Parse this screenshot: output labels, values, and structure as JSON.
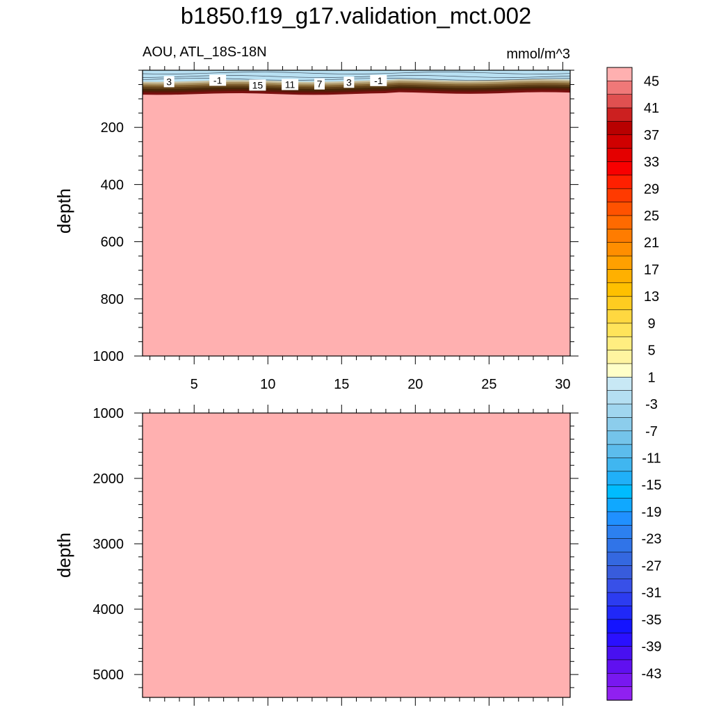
{
  "title": "b1850.f19_g17.validation_mct.002",
  "left_subtitle": "AOU, ATL_18S-18N",
  "right_subtitle": "mmol/m^3",
  "chart_data": {
    "type": "heatmap",
    "x_range": [
      1.5,
      30.5
    ],
    "x_ticks": [
      5,
      10,
      15,
      20,
      25,
      30
    ],
    "fill_value": 47,
    "fill_color": "#ffb0b0",
    "surface_layer": {
      "depth_range": [
        0,
        75
      ],
      "description_values": [
        -3,
        45
      ]
    },
    "panels": [
      {
        "name": "upper",
        "ylabel": "depth",
        "ylim": [
          0,
          1000
        ],
        "y_ticks": [
          200,
          400,
          600,
          800,
          1000
        ]
      },
      {
        "name": "lower",
        "ylabel": "depth",
        "ylim": [
          1000,
          5350
        ],
        "y_ticks": [
          1000,
          2000,
          3000,
          4000,
          5000
        ]
      }
    ],
    "contour_labels": [
      {
        "text": "3",
        "x": 3.3,
        "depth": 40
      },
      {
        "text": "-1",
        "x": 6.6,
        "depth": 35
      },
      {
        "text": "15",
        "x": 9.3,
        "depth": 52
      },
      {
        "text": "11",
        "x": 11.5,
        "depth": 50
      },
      {
        "text": "7",
        "x": 13.5,
        "depth": 48
      },
      {
        "text": "3",
        "x": 15.5,
        "depth": 42
      },
      {
        "text": "-1",
        "x": 17.5,
        "depth": 36
      }
    ],
    "colorbar": {
      "labels": [
        "45",
        "41",
        "37",
        "33",
        "29",
        "25",
        "21",
        "17",
        "13",
        "9",
        "5",
        "1",
        "-3",
        "-7",
        "-11",
        "-15",
        "-19",
        "-23",
        "-27",
        "-31",
        "-35",
        "-39",
        "-43"
      ],
      "colors": [
        "#ffb0b0",
        "#f07878",
        "#e05050",
        "#cc2020",
        "#b80000",
        "#d00000",
        "#e40000",
        "#f80000",
        "#ff2000",
        "#ff3a00",
        "#ff5200",
        "#ff6a00",
        "#ff7c00",
        "#ff8e00",
        "#ffa000",
        "#ffb000",
        "#ffc000",
        "#ffcc20",
        "#ffd840",
        "#ffe45a",
        "#ffee80",
        "#fff4a0",
        "#ffffc8",
        "#c8e8f5",
        "#b4dff2",
        "#a0d6ef",
        "#8ccdec",
        "#74c4ea",
        "#5cbcec",
        "#40b6f0",
        "#20b0f8",
        "#00bcff",
        "#10a8ff",
        "#2090ff",
        "#2c80f0",
        "#3074e8",
        "#3468e0",
        "#385cdc",
        "#3850e8",
        "#2c3cf0",
        "#2028f8",
        "#1414ff",
        "#2a10ff",
        "#4810f0",
        "#6010f0",
        "#7818f0",
        "#9020f0"
      ]
    }
  }
}
